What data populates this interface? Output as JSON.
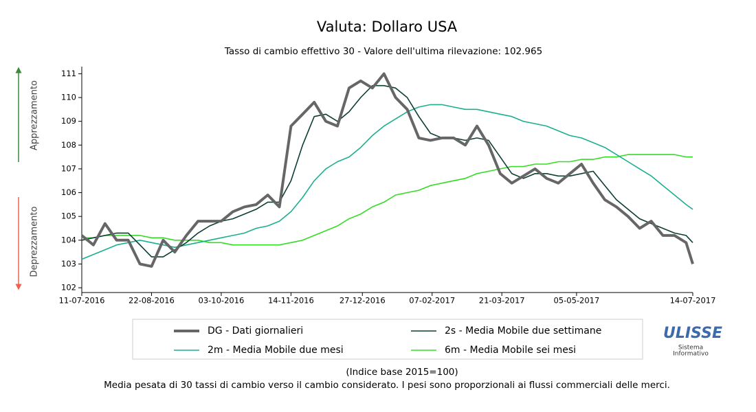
{
  "chart_data": {
    "type": "line",
    "title": "Valuta: Dollaro USA",
    "subtitle": "Tasso di cambio effettivo 30 - Valore dell'ultima rilevazione: 102.965",
    "annotations": {
      "up": "Apprezzamento",
      "down": "Deprezzamento"
    },
    "notes": [
      "(Indice base 2015=100)",
      "Media pesata di 30 tassi di cambio verso il cambio considerato. I pesi sono proporzionali ai flussi commerciali delle merci."
    ],
    "logo": {
      "name": "ULISSE",
      "line1": "Sistema",
      "line2": "Informativo"
    },
    "x": [
      "11-07-2016",
      "18-07-2016",
      "25-07-2016",
      "01-08-2016",
      "08-08-2016",
      "15-08-2016",
      "22-08-2016",
      "29-08-2016",
      "05-09-2016",
      "12-09-2016",
      "19-09-2016",
      "26-09-2016",
      "03-10-2016",
      "10-10-2016",
      "17-10-2016",
      "24-10-2016",
      "31-10-2016",
      "07-11-2016",
      "14-11-2016",
      "21-11-2016",
      "28-11-2016",
      "05-12-2016",
      "12-12-2016",
      "19-12-2016",
      "26-12-2016",
      "02-01-2017",
      "09-01-2017",
      "16-01-2017",
      "23-01-2017",
      "30-01-2017",
      "06-02-2017",
      "13-02-2017",
      "20-02-2017",
      "27-02-2017",
      "06-03-2017",
      "13-03-2017",
      "20-03-2017",
      "27-03-2017",
      "03-04-2017",
      "10-04-2017",
      "17-04-2017",
      "24-04-2017",
      "01-05-2017",
      "08-05-2017",
      "15-05-2017",
      "22-05-2017",
      "29-05-2017",
      "05-06-2017",
      "12-06-2017",
      "19-06-2017",
      "26-06-2017",
      "03-07-2017",
      "10-07-2017",
      "14-07-2017"
    ],
    "series": [
      {
        "name": "DG - Dati giornalieri",
        "color": "#666666",
        "width": 4,
        "values": [
          104.2,
          103.8,
          104.7,
          104.0,
          104.0,
          103.0,
          102.9,
          104.0,
          103.5,
          104.2,
          104.8,
          104.8,
          104.8,
          105.2,
          105.4,
          105.5,
          105.9,
          105.4,
          108.8,
          109.3,
          109.8,
          109.0,
          108.8,
          110.4,
          110.7,
          110.4,
          111.0,
          110.0,
          109.5,
          108.3,
          108.2,
          108.3,
          108.3,
          108.0,
          108.8,
          108.0,
          106.8,
          106.4,
          106.7,
          107.0,
          106.6,
          106.4,
          106.8,
          107.2,
          106.4,
          105.7,
          105.4,
          105.0,
          104.5,
          104.8,
          104.2,
          104.2,
          103.9,
          103.0
        ]
      },
      {
        "name": "2s - Media Mobile due settimane",
        "color": "#0b3d35",
        "width": 1.6,
        "values": [
          104.0,
          104.1,
          104.2,
          104.3,
          104.3,
          103.8,
          103.3,
          103.3,
          103.6,
          103.9,
          104.3,
          104.6,
          104.8,
          104.9,
          105.1,
          105.3,
          105.6,
          105.6,
          106.5,
          108.0,
          109.2,
          109.3,
          109.0,
          109.4,
          110.0,
          110.5,
          110.5,
          110.4,
          110.0,
          109.2,
          108.5,
          108.3,
          108.3,
          108.2,
          108.3,
          108.2,
          107.5,
          106.8,
          106.6,
          106.8,
          106.8,
          106.7,
          106.7,
          106.8,
          106.9,
          106.3,
          105.7,
          105.3,
          104.9,
          104.7,
          104.5,
          104.3,
          104.2,
          103.9
        ]
      },
      {
        "name": "2m - Media Mobile due mesi",
        "color": "#1aaf8f",
        "width": 1.6,
        "values": [
          103.2,
          103.4,
          103.6,
          103.8,
          103.9,
          104.0,
          103.9,
          103.8,
          103.7,
          103.8,
          103.9,
          104.0,
          104.1,
          104.2,
          104.3,
          104.5,
          104.6,
          104.8,
          105.2,
          105.8,
          106.5,
          107.0,
          107.3,
          107.5,
          107.9,
          108.4,
          108.8,
          109.1,
          109.4,
          109.6,
          109.7,
          109.7,
          109.6,
          109.5,
          109.5,
          109.4,
          109.3,
          109.2,
          109.0,
          108.9,
          108.8,
          108.6,
          108.4,
          108.3,
          108.1,
          107.9,
          107.6,
          107.3,
          107.0,
          106.7,
          106.3,
          105.9,
          105.5,
          105.3
        ]
      },
      {
        "name": "6m - Media Mobile sei mesi",
        "color": "#33dd22",
        "width": 1.6,
        "values": [
          104.1,
          104.1,
          104.2,
          104.2,
          104.2,
          104.2,
          104.1,
          104.1,
          104.0,
          104.0,
          104.0,
          103.9,
          103.9,
          103.8,
          103.8,
          103.8,
          103.8,
          103.8,
          103.9,
          104.0,
          104.2,
          104.4,
          104.6,
          104.9,
          105.1,
          105.4,
          105.6,
          105.9,
          106.0,
          106.1,
          106.3,
          106.4,
          106.5,
          106.6,
          106.8,
          106.9,
          107.0,
          107.1,
          107.1,
          107.2,
          107.2,
          107.3,
          107.3,
          107.4,
          107.4,
          107.5,
          107.5,
          107.6,
          107.6,
          107.6,
          107.6,
          107.6,
          107.5,
          107.5
        ]
      }
    ],
    "xlim": [
      "11-07-2016",
      "14-07-2017"
    ],
    "xticks": [
      "11-07-2016",
      "22-08-2016",
      "03-10-2016",
      "14-11-2016",
      "27-12-2016",
      "07-02-2017",
      "21-03-2017",
      "05-05-2017",
      "14-07-2017"
    ],
    "ylim": [
      101.8,
      111.3
    ],
    "yticks": [
      102,
      103,
      104,
      105,
      106,
      107,
      108,
      109,
      110,
      111
    ],
    "grid": false,
    "legend": "bottom"
  }
}
